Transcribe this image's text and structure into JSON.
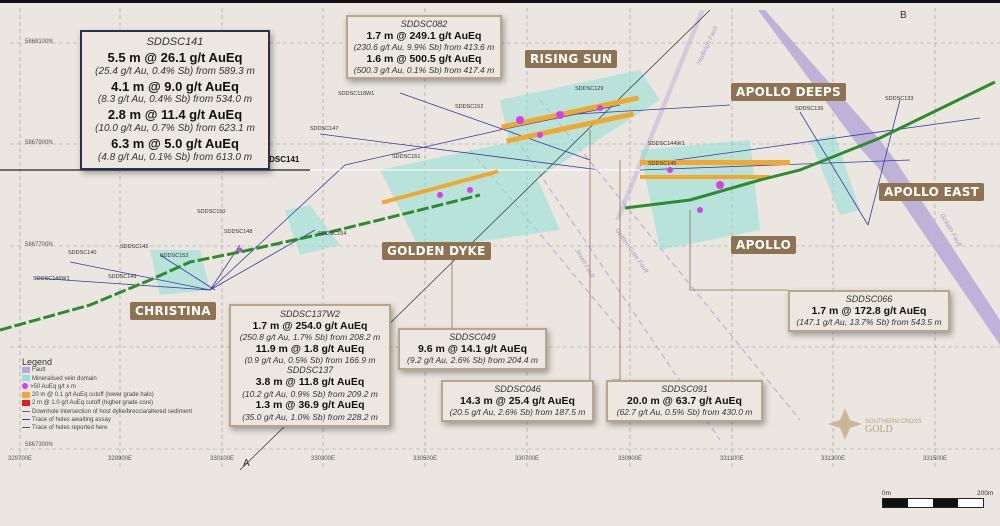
{
  "boxes": {
    "sddsc141": {
      "hole": "SDDSC141",
      "lines": [
        [
          "5.5 m @ 26.1 g/t AuEq",
          "(25.4 g/t Au, 0.4% Sb) from 589.3 m"
        ],
        [
          "4.1 m @ 9.0 g/t AuEq",
          "(8.3 g/t Au, 0.4% Sb) from 534.0 m"
        ],
        [
          "2.8 m @ 11.4 g/t AuEq",
          "(10.0 g/t Au, 0.7% Sb) from 623.1 m"
        ],
        [
          "6.3 m @ 5.0 g/t AuEq",
          "(4.8 g/t Au, 0.1% Sb) from 613.0 m"
        ]
      ]
    },
    "sddsc082": {
      "hole": "SDDSC082",
      "lines": [
        [
          "1.7 m @ 249.1 g/t AuEq",
          "(230.6 g/t Au, 9.9% Sb) from 413.6 m"
        ],
        [
          "1.6 m @ 500.5 g/t AuEq",
          "(500.3 g/t Au, 0.1% Sb) from 417.4 m"
        ]
      ]
    },
    "sddsc137w2": {
      "hole": "SDDSC137W2",
      "hole2": "SDDSC137",
      "lines": [
        [
          "1.7 m @ 254.0 g/t AuEq",
          "(250.8 g/t Au, 1.7% Sb) from 208.2 m"
        ],
        [
          "11.9 m @ 1.8 g/t AuEq",
          "(0.9 g/t Au, 0.5% Sb) from 166.9 m"
        ],
        [
          "3.8 m @ 11.8 g/t AuEq",
          "(10.2 g/t Au, 0.9% Sb) from 209.2 m"
        ],
        [
          "1.3 m @ 36.9 g/t AuEq",
          "(35.0 g/t Au, 1.0% Sb) from 228.2 m"
        ]
      ]
    },
    "sddsc049": {
      "hole": "SDDSC049",
      "lines": [
        [
          "9.6 m @ 14.1 g/t AuEq",
          "(9.2 g/t Au, 2.6% Sb) from 204.4 m"
        ]
      ]
    },
    "sddsc046": {
      "hole": "SDDSC046",
      "lines": [
        [
          "14.3 m @ 25.4 g/t AuEq",
          "(20.5 g/t Au, 2.6% Sb) from 187.5 m"
        ]
      ]
    },
    "sddsc091": {
      "hole": "SDDSC091",
      "lines": [
        [
          "20.0 m @ 63.7 g/t AuEq",
          "(62.7 g/t Au, 0.5% Sb) from 430.0 m"
        ]
      ]
    },
    "sddsc066": {
      "hole": "SDDSC066",
      "lines": [
        [
          "1.7 m @ 172.8 g/t AuEq",
          "(147.1 g/t Au, 13.7% Sb) from 543.5 m"
        ]
      ]
    }
  },
  "prospects": [
    "RISING SUN",
    "APOLLO DEEPS",
    "APOLLO EAST",
    "APOLLO",
    "GOLDEN DYKE",
    "CHRISTINA"
  ],
  "highlight_hole": "SDDSC141",
  "holes": [
    "SDDSC118W1",
    "SDDSC152",
    "SDDSC147",
    "SDDSC151",
    "SDDSC150",
    "SDDSC148",
    "SDDSC154",
    "SDDSC142",
    "SDDSC140",
    "SDDSC153",
    "SDDSC146W1",
    "SDDSC149",
    "SDDSC129",
    "SDDSC136",
    "SDDSC133",
    "SDDSC144W1",
    "SDDSC145"
  ],
  "faults": [
    "Hadleigh Fault",
    "Golden Gate Fault",
    "Jewel Fault",
    "Goliath Fault"
  ],
  "section_ends": [
    "A",
    "B"
  ],
  "eastings": [
    "329700E",
    "329900E",
    "330100E",
    "330300E",
    "330500E",
    "330700E",
    "330900E",
    "331100E",
    "331300E",
    "331500E"
  ],
  "northings": [
    "5868100N",
    "5867900N",
    "5867700N",
    "5867300N"
  ],
  "legend": {
    "title": "Legend",
    "items": [
      {
        "label": "Fault",
        "color": "#b6a8d6"
      },
      {
        "label": "Mineralised vein domain",
        "color": "#8fe0d6"
      },
      {
        "label": ">50 AuEq g/t x m",
        "color": "#d640e6"
      },
      {
        "label": "20 m @ 0.1 g/t AuEq cutoff (lower grade halo)",
        "color": "#f0a830"
      },
      {
        "label": "2 m @ 1.0 g/t AuEq cutoff (higher grade core)",
        "color": "#e02020"
      },
      {
        "label": "Downhole intersection of host dyke/breccia/altered sediment",
        "color": "#666666"
      },
      {
        "label": "Trace of holes awaiting assay",
        "color": "#3a3aa0"
      },
      {
        "label": "Trace of holes reported here",
        "color": "#555555"
      }
    ]
  },
  "scale": {
    "start": "0m",
    "end": "200m"
  },
  "logo": {
    "line1": "SOUTHERN CROSS",
    "line2": "GOLD"
  },
  "colors": {
    "trace": "#2e8b2e",
    "label_bg": "#8d7352",
    "box_border": "#b8a68a"
  }
}
